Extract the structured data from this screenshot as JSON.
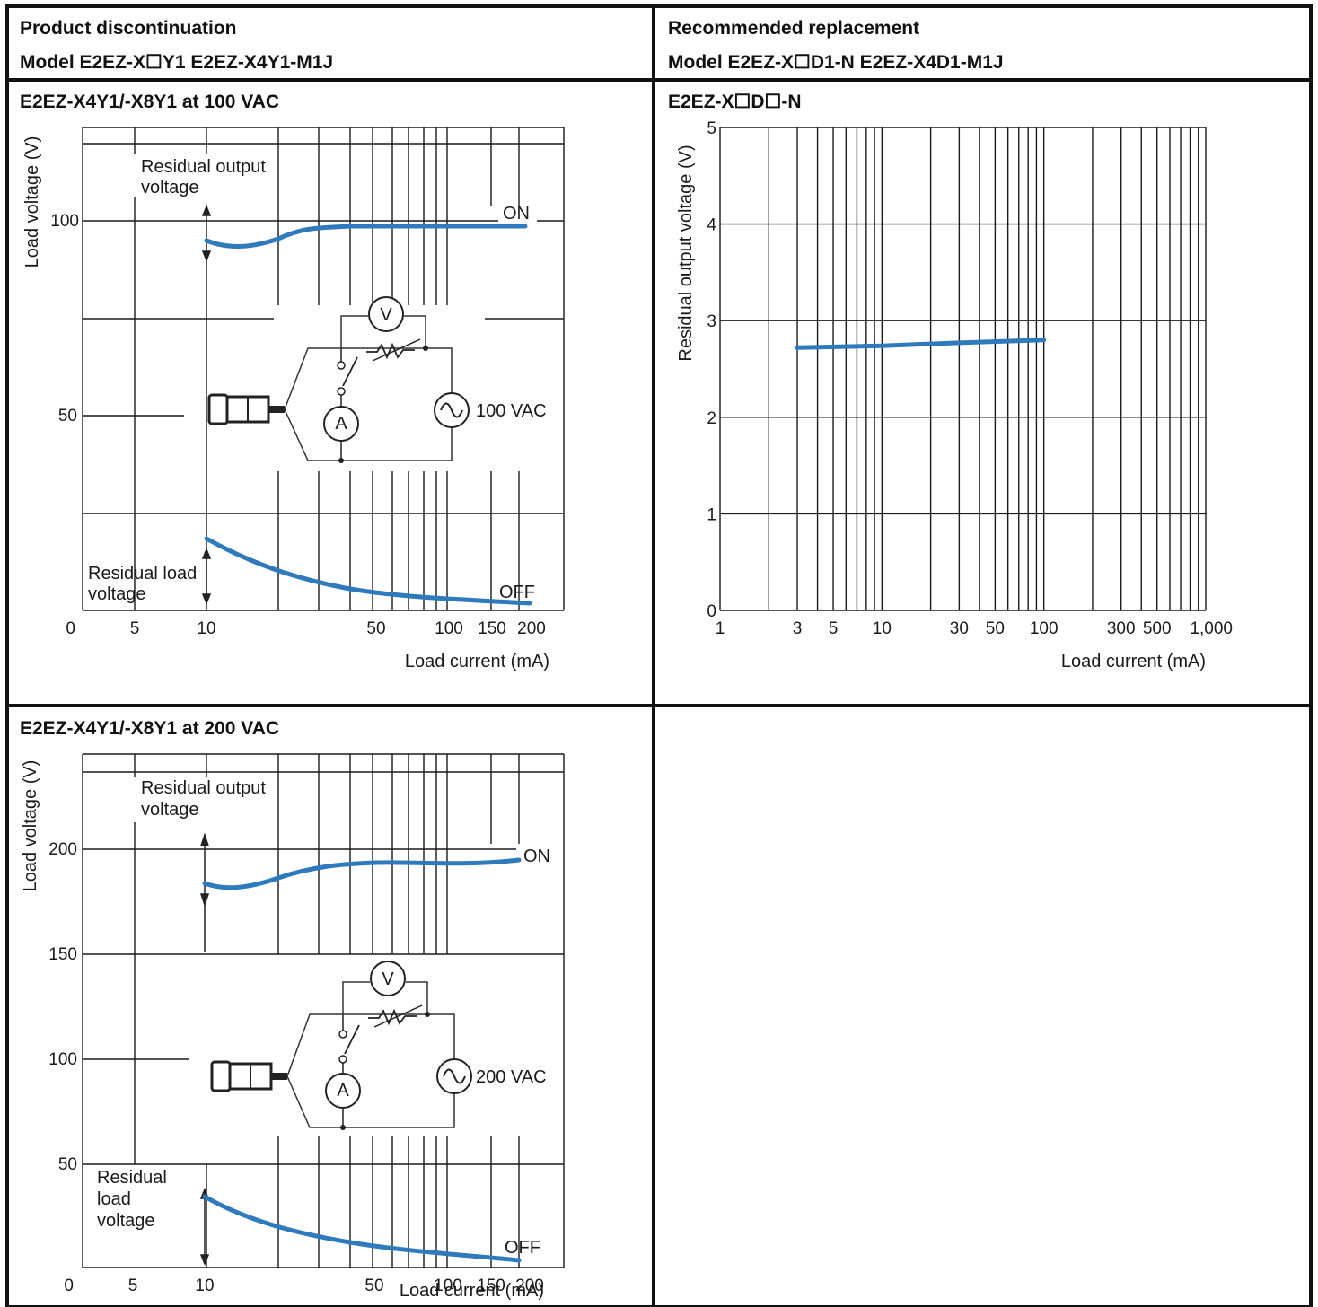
{
  "table": {
    "header_left": {
      "line1": "Product discontinuation",
      "line2": "Model E2EZ-X☐Y1 E2EZ-X4Y1-M1J"
    },
    "header_right": {
      "line1": "Recommended replacement",
      "line2": "Model E2EZ-X☐D1-N E2EZ-X4D1-M1J"
    }
  },
  "chart_data": [
    {
      "type": "line",
      "title": "E2EZ-X4Y1/-X8Y1 at 100 VAC",
      "xlabel": "Load current (mA)",
      "ylabel": "Load voltage (V)",
      "x_scale": "log",
      "x_ticks": [
        "0",
        "5",
        "10",
        "50",
        "100",
        "150",
        "200"
      ],
      "y_ticks": [
        "0",
        "50",
        "100"
      ],
      "ylim": [
        0,
        120
      ],
      "grid": true,
      "annotations": {
        "top": "Residual output voltage",
        "bottom": "Residual load voltage",
        "on": "ON",
        "off": "OFF",
        "source": "100 VAC",
        "ammeter": "A",
        "voltmeter": "V"
      },
      "series": [
        {
          "name": "ON",
          "x": [
            10,
            12,
            15,
            20,
            30,
            50,
            100,
            150,
            200
          ],
          "y": [
            95,
            93,
            93.5,
            96,
            98.5,
            99,
            99,
            99,
            99
          ]
        },
        {
          "name": "OFF",
          "x": [
            10,
            15,
            20,
            30,
            50,
            100,
            150,
            200
          ],
          "y": [
            20,
            14,
            11,
            8,
            5,
            2.5,
            1.5,
            1
          ]
        }
      ]
    },
    {
      "type": "line",
      "title": "E2EZ-X☐D☐-N",
      "xlabel": "Load current (mA)",
      "ylabel": "Residual output voltage (V)",
      "x_scale": "log",
      "xlim": [
        1,
        1000
      ],
      "x_ticks": [
        "1",
        "3",
        "5",
        "10",
        "30",
        "50",
        "100",
        "300",
        "500",
        "1,000"
      ],
      "y_ticks": [
        "0",
        "1",
        "2",
        "3",
        "4",
        "5"
      ],
      "ylim": [
        0,
        5
      ],
      "grid": true,
      "series": [
        {
          "x": [
            3,
            10,
            30,
            100
          ],
          "y": [
            2.72,
            2.74,
            2.77,
            2.8
          ]
        }
      ]
    },
    {
      "type": "line",
      "title": "E2EZ-X4Y1/-X8Y1 at 200 VAC",
      "xlabel": "Load current (mA)",
      "ylabel": "Load voltage (V)",
      "x_scale": "log",
      "x_ticks": [
        "0",
        "5",
        "10",
        "50",
        "100",
        "150",
        "200"
      ],
      "y_ticks": [
        "0",
        "50",
        "100",
        "150",
        "200"
      ],
      "ylim": [
        0,
        240
      ],
      "grid": true,
      "annotations": {
        "top": "Residual output voltage",
        "bottom": "Residual load voltage",
        "on": "ON",
        "off": "OFF",
        "source": "200 VAC",
        "ammeter": "A",
        "voltmeter": "V"
      },
      "series": [
        {
          "name": "ON",
          "x": [
            10,
            12,
            15,
            20,
            30,
            50,
            100,
            150,
            200
          ],
          "y": [
            184,
            182,
            183,
            187,
            192,
            194,
            194,
            193,
            195
          ]
        },
        {
          "name": "OFF",
          "x": [
            10,
            15,
            20,
            30,
            50,
            100,
            150,
            200
          ],
          "y": [
            32,
            24,
            19,
            14,
            9,
            5,
            3,
            2
          ]
        }
      ]
    }
  ]
}
